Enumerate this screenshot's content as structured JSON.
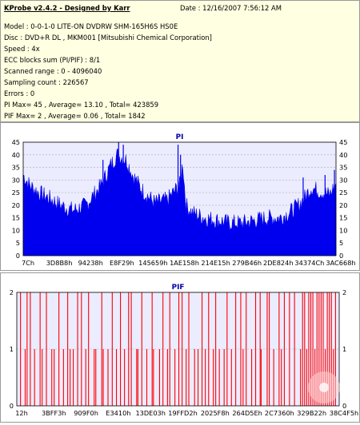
{
  "header": {
    "app_title": "KProbe v2.4.2 - Designed by Karr",
    "date": "Date : 12/16/2007 7:56:12 AM"
  },
  "info_lines": [
    "Model : 0-0-1-0 LITE-ON DVDRW SHM-165H6S HS0E",
    "Disc : DVD+R DL , MKM001 [Mitsubishi Chemical Corporation]",
    "Speed : 4x",
    "ECC blocks sum (PI/PIF) : 8/1",
    "Scanned range : 0 - 4096040",
    "Sampling count : 226567",
    "Errors : 0",
    "PI Max= 45 , Average= 13.10 , Total= 423859",
    "PIF Max= 2 , Average= 0.06 , Total= 1842"
  ],
  "colors": {
    "pi_fill": "#0000ee",
    "pif_line": "#ff0000",
    "grid": "#aaaaaa",
    "plot_bg": "#ececff",
    "title": "#0000aa",
    "info_bg": "#ffffe1"
  },
  "chart_data": [
    {
      "type": "area",
      "title": "PI",
      "ylim": [
        0,
        45
      ],
      "yticks": [
        "0",
        "5",
        "10",
        "15",
        "20",
        "25",
        "30",
        "35",
        "40",
        "45"
      ],
      "xticks": [
        "7Ch",
        "3D8B8h",
        "94238h",
        "E8F29h",
        "145659h",
        "1AE158h",
        "214E15h",
        "279B46h",
        "2DE824h",
        "34374Ch",
        "3AC668h"
      ],
      "grid": true,
      "profile": [
        [
          0,
          32
        ],
        [
          2,
          28
        ],
        [
          5,
          25
        ],
        [
          8,
          23
        ],
        [
          12,
          20
        ],
        [
          16,
          18
        ],
        [
          20,
          20
        ],
        [
          25,
          28
        ],
        [
          28,
          36
        ],
        [
          30,
          40
        ],
        [
          33,
          38
        ],
        [
          35,
          32
        ],
        [
          38,
          26
        ],
        [
          42,
          21
        ],
        [
          46,
          22
        ],
        [
          50,
          28
        ],
        [
          51,
          37
        ],
        [
          52,
          20
        ],
        [
          54,
          17
        ],
        [
          58,
          15
        ],
        [
          62,
          14
        ],
        [
          66,
          13
        ],
        [
          70,
          13
        ],
        [
          74,
          14
        ],
        [
          78,
          15
        ],
        [
          82,
          15
        ],
        [
          85,
          17
        ],
        [
          88,
          20
        ],
        [
          90,
          23
        ],
        [
          92,
          27
        ],
        [
          94,
          26
        ],
        [
          96,
          25
        ],
        [
          98,
          24
        ],
        [
          100,
          29
        ]
      ],
      "spikes": [
        [
          49.5,
          44
        ],
        [
          50.3,
          40
        ],
        [
          52.2,
          21
        ],
        [
          25.5,
          38
        ],
        [
          30.5,
          45
        ],
        [
          32,
          44
        ],
        [
          89.5,
          31
        ],
        [
          96.5,
          32
        ],
        [
          99.5,
          34
        ]
      ]
    },
    {
      "type": "bar",
      "title": "PIF",
      "ylim": [
        0,
        2
      ],
      "yticks": [
        "0",
        "1",
        "2"
      ],
      "xticks": [
        "12h",
        "3BFF3h",
        "909F0h",
        "E3410h",
        "13DE03h",
        "19FFD2h",
        "2025F8h",
        "264D5Eh",
        "2C7360h",
        "329B22h",
        "38C4F5h"
      ],
      "grid": true,
      "heights": [
        2,
        1,
        2,
        2,
        1,
        2,
        1,
        2,
        1,
        1,
        2,
        1,
        2,
        1,
        1,
        2,
        2,
        1,
        2,
        1,
        1,
        2,
        1,
        1,
        2,
        1,
        2,
        1,
        2,
        2,
        1,
        1,
        2,
        1,
        2,
        1,
        1,
        2,
        1,
        2,
        1,
        2,
        2,
        1,
        2,
        1,
        1,
        2,
        1,
        2,
        1,
        2,
        1,
        1,
        2,
        1,
        2,
        2,
        1,
        2,
        1,
        2,
        2,
        1,
        2,
        2,
        1,
        2,
        1,
        2,
        2,
        2,
        1,
        2,
        2,
        1,
        2,
        2,
        2,
        1,
        2,
        2,
        2,
        2,
        1,
        2,
        2,
        2,
        1,
        2
      ]
    }
  ]
}
